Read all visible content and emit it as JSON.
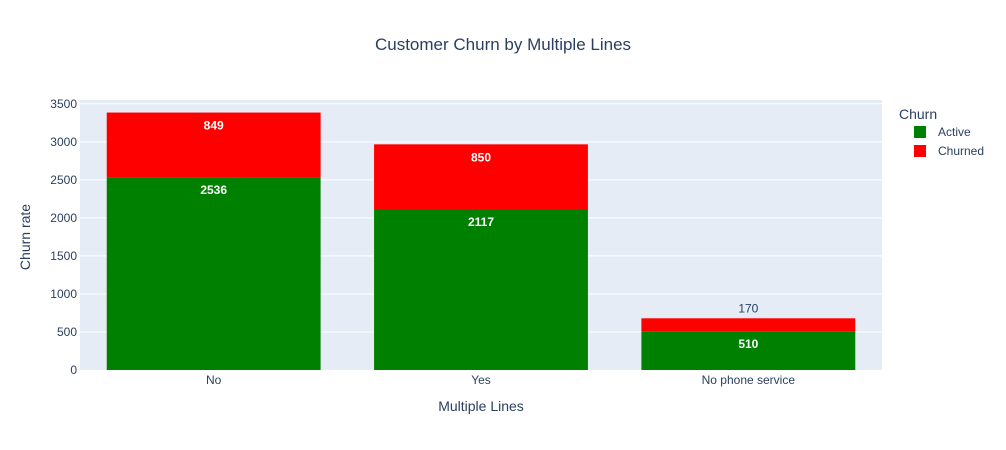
{
  "chart_data": {
    "type": "bar",
    "barmode": "stack",
    "title": "Customer Churn by Multiple Lines",
    "xlabel": "Multiple Lines",
    "ylabel": "Churn rate",
    "categories": [
      "No",
      "Yes",
      "No phone service"
    ],
    "ylim": [
      0,
      3550
    ],
    "yticks": [
      0,
      500,
      1000,
      1500,
      2000,
      2500,
      3000,
      3500
    ],
    "grid": true,
    "legend_title": "Churn",
    "legend_position": "top-right",
    "series": [
      {
        "name": "Active",
        "values": [
          2536,
          2117,
          510
        ],
        "color": "#008000"
      },
      {
        "name": "Churned",
        "values": [
          849,
          850,
          170
        ],
        "color": "#ff0000"
      }
    ],
    "plot_background": "#e5ecf6"
  }
}
